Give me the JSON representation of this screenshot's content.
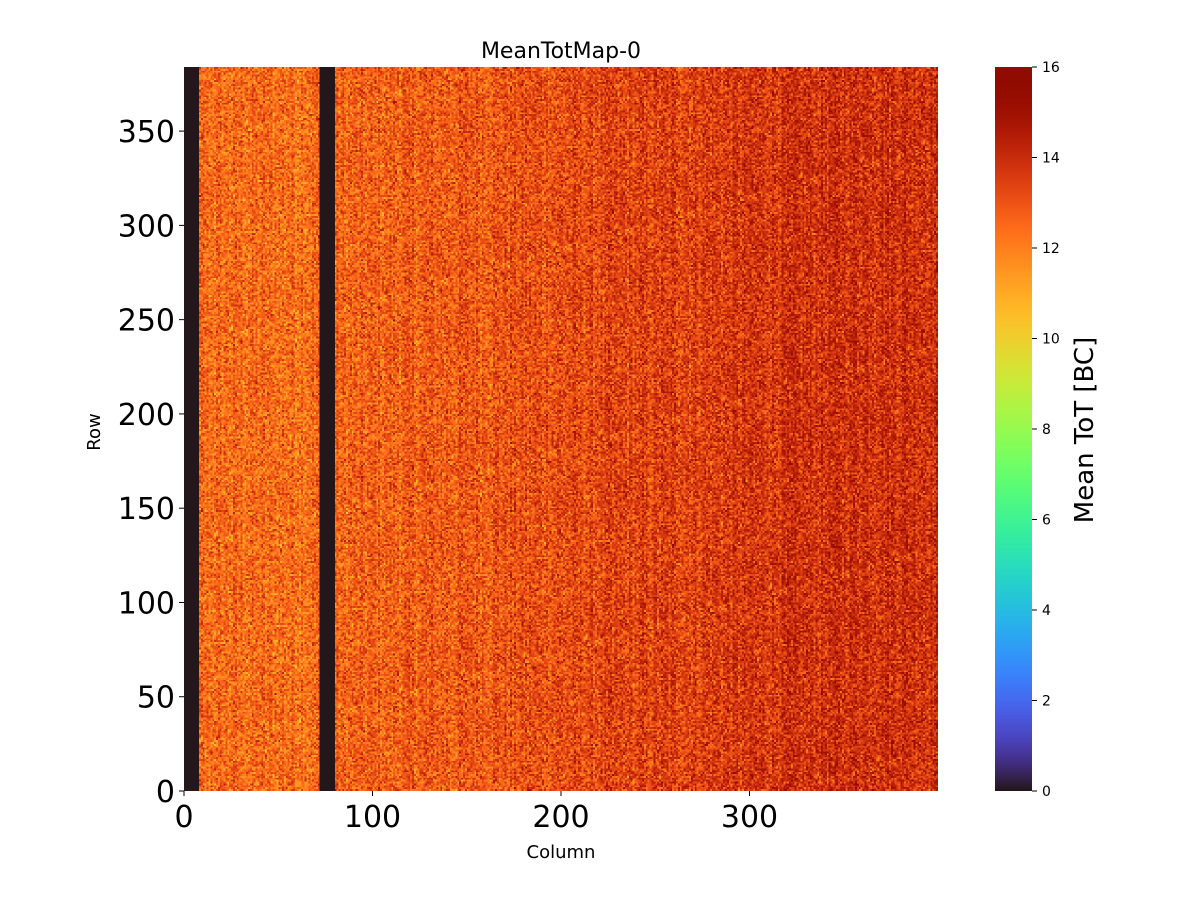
{
  "chart_data": {
    "type": "heatmap",
    "title": "MeanTotMap-0",
    "xlabel": "Column",
    "ylabel": "Row",
    "xlim": [
      0,
      400
    ],
    "ylim": [
      0,
      384
    ],
    "x_ticks": [
      0,
      100,
      200,
      300
    ],
    "y_ticks": [
      0,
      50,
      100,
      150,
      200,
      250,
      300,
      350
    ],
    "colorbar": {
      "label": "Mean ToT [BC]",
      "range": [
        0,
        16
      ],
      "ticks": [
        0,
        2,
        4,
        6,
        8,
        10,
        12,
        14,
        16
      ],
      "colormap": "turbo"
    },
    "regions": [
      {
        "description": "dead columns",
        "columns": [
          0,
          7
        ],
        "value": 0
      },
      {
        "description": "dead columns",
        "columns": [
          72,
          79
        ],
        "value": 0
      },
      {
        "description": "active pixels, left side",
        "columns": [
          8,
          150
        ],
        "approx_mean_value": 12.5
      },
      {
        "description": "active pixels, right side",
        "columns": [
          300,
          399
        ],
        "approx_mean_value": 14.0
      }
    ],
    "grid": false
  }
}
